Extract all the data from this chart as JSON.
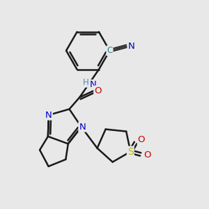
{
  "bg_color": "#e8e8e8",
  "bond_color": "#1a1a1a",
  "bond_width": 1.8,
  "atom_colors": {
    "N": "#0000cc",
    "O": "#cc0000",
    "S": "#b8b800",
    "NH_color": "#5588aa",
    "C_nitrile": "#1a8a8a"
  },
  "font_size": 9.5
}
